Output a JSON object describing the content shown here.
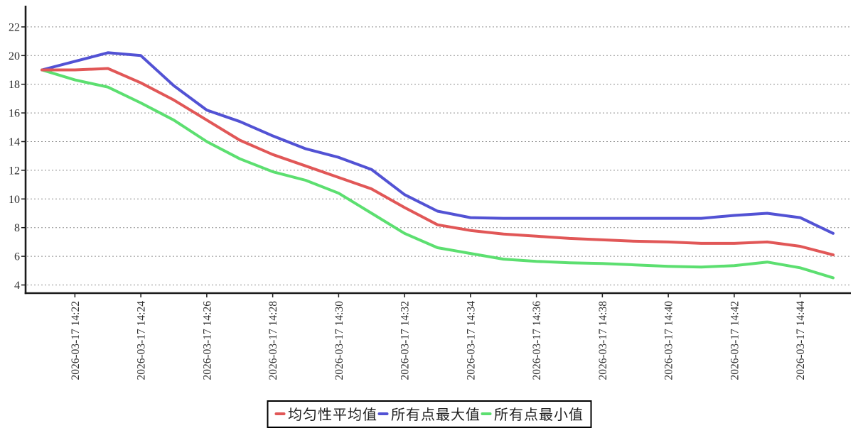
{
  "chart_data": {
    "type": "line",
    "title": "",
    "xlabel": "",
    "ylabel": "",
    "x": [
      "2026-03-17 14:21",
      "2026-03-17 14:22",
      "2026-03-17 14:23",
      "2026-03-17 14:24",
      "2026-03-17 14:25",
      "2026-03-17 14:26",
      "2026-03-17 14:27",
      "2026-03-17 14:28",
      "2026-03-17 14:29",
      "2026-03-17 14:30",
      "2026-03-17 14:31",
      "2026-03-17 14:32",
      "2026-03-17 14:33",
      "2026-03-17 14:34",
      "2026-03-17 14:35",
      "2026-03-17 14:36",
      "2026-03-17 14:37",
      "2026-03-17 14:38",
      "2026-03-17 14:39",
      "2026-03-17 14:40",
      "2026-03-17 14:41",
      "2026-03-17 14:42",
      "2026-03-17 14:43",
      "2026-03-17 14:44",
      "2026-03-17 14:45"
    ],
    "x_tick_labels": [
      "2026-03-17 14:22",
      "2026-03-17 14:24",
      "2026-03-17 14:26",
      "2026-03-17 14:28",
      "2026-03-17 14:30",
      "2026-03-17 14:32",
      "2026-03-17 14:34",
      "2026-03-17 14:36",
      "2026-03-17 14:38",
      "2026-03-17 14:40",
      "2026-03-17 14:42",
      "2026-03-17 14:44"
    ],
    "series": [
      {
        "key": "average",
        "name": "均匀性平均值",
        "color": "#e15757",
        "values": [
          19.0,
          19.0,
          19.1,
          18.1,
          16.9,
          15.5,
          14.1,
          13.1,
          12.3,
          11.5,
          10.7,
          9.4,
          8.2,
          7.8,
          7.55,
          7.4,
          7.25,
          7.15,
          7.05,
          7.0,
          6.9,
          6.9,
          7.0,
          6.7,
          6.1
        ]
      },
      {
        "key": "max",
        "name": "所有点最大值",
        "color": "#5252d4",
        "values": [
          19.0,
          19.6,
          20.2,
          20.0,
          17.9,
          16.2,
          15.4,
          14.4,
          13.5,
          12.9,
          12.05,
          10.3,
          9.15,
          8.7,
          8.65,
          8.65,
          8.65,
          8.65,
          8.65,
          8.65,
          8.65,
          8.85,
          9.0,
          8.7,
          7.6
        ]
      },
      {
        "key": "min",
        "name": "所有点最小值",
        "color": "#5cdf70",
        "values": [
          19.0,
          18.3,
          17.8,
          16.7,
          15.5,
          14.0,
          12.8,
          11.9,
          11.3,
          10.4,
          9.0,
          7.6,
          6.6,
          6.2,
          5.8,
          5.65,
          5.55,
          5.5,
          5.4,
          5.3,
          5.25,
          5.35,
          5.6,
          5.2,
          4.5
        ]
      }
    ],
    "y_ticks": [
      4,
      6,
      8,
      10,
      12,
      14,
      16,
      18,
      20,
      22
    ],
    "ylim": [
      3.7,
      22.9
    ],
    "grid": "horizontal-dashed",
    "legend_position": "bottom-center",
    "style": {
      "background": "#ffffff",
      "axis_color": "#1b1b1b",
      "grid_color": "#8f8f8f",
      "tick_text_color": "#2d2d2d",
      "line_width": 4
    }
  }
}
